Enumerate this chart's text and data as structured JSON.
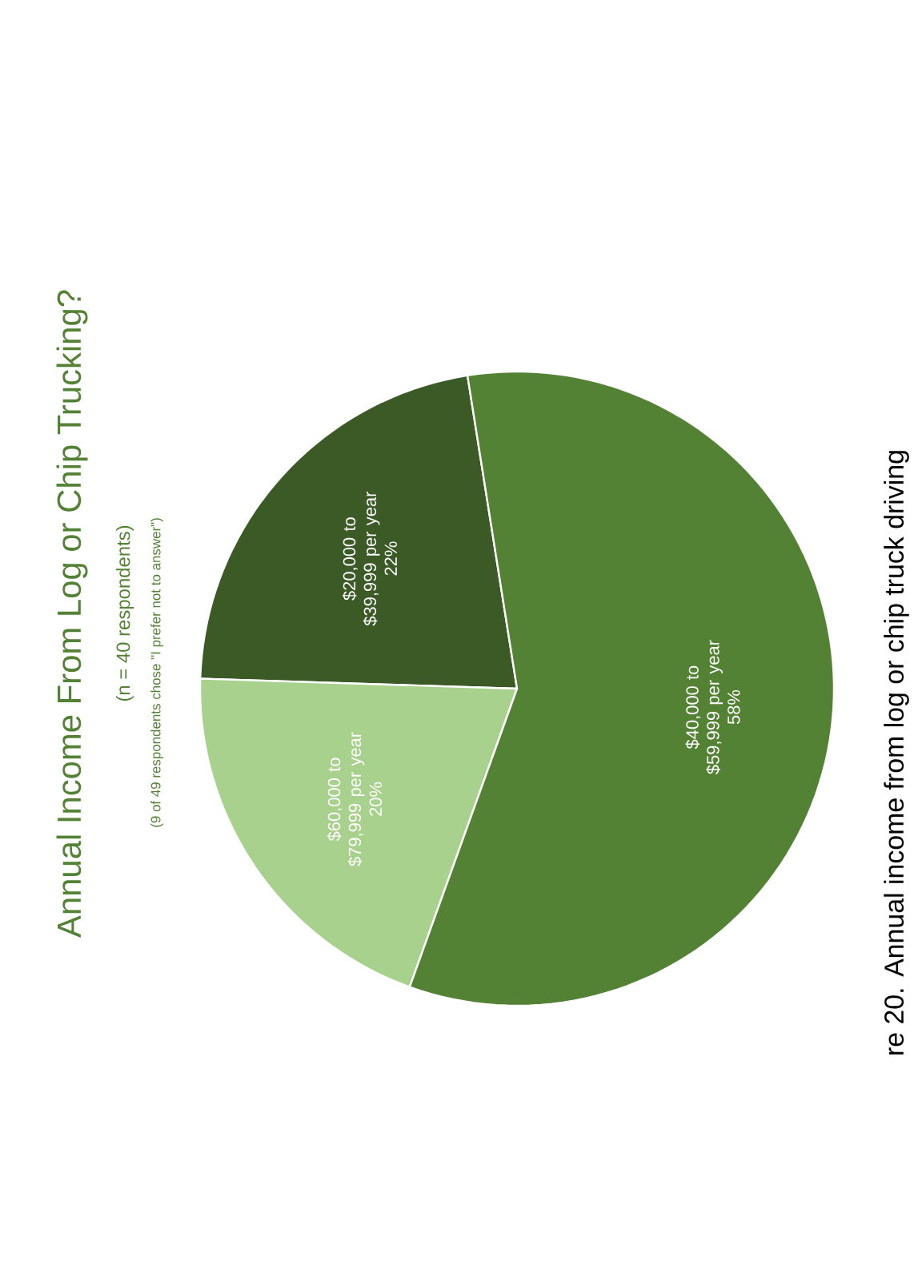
{
  "chart_data": {
    "type": "pie",
    "title": "Annual Income From Log or Chip Trucking?",
    "subtitle": "(n = 40 respondents)",
    "annotations": [
      "(9 of 49 respondents chose \"I prefer not to answer\")",
      "re 20. Annual income from log or chip truck driving"
    ],
    "categories": [
      "$20,000 to $39,999 per year",
      "$60,000 to $79,999 per year",
      "$40,000 to $59,999 per year"
    ],
    "values": [
      22,
      20,
      58
    ],
    "value_labels": [
      "22%",
      "20%",
      "58%"
    ],
    "colors": [
      "#3b5a26",
      "#a9d18e",
      "#548235"
    ]
  }
}
